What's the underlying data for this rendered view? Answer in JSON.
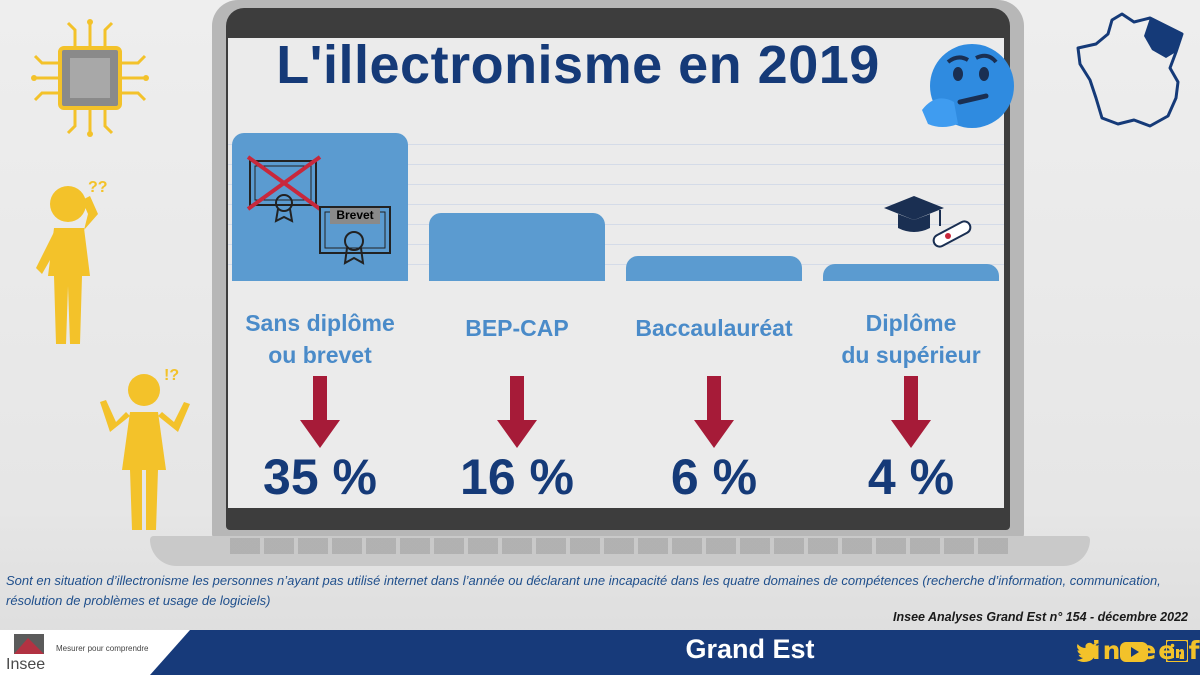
{
  "title": "L'illectronisme en 2019",
  "chart_data": {
    "type": "bar",
    "title": "L'illectronisme en 2019",
    "categories": [
      "Sans diplôme\nou brevet",
      "BEP-CAP",
      "Baccaulauréat",
      "Diplôme\ndu supérieur"
    ],
    "values": [
      35,
      16,
      6,
      4
    ],
    "value_labels": [
      "35 %",
      "16 %",
      "6 %",
      "4 %"
    ],
    "ylim": [
      0,
      35
    ],
    "grid": true,
    "colors": {
      "bar": "#5b9bd0",
      "title": "#153a78",
      "label": "#4a8bc9",
      "arrow": "#a61b38"
    }
  },
  "diploma_label": "Brevet",
  "footnote": "Sont en situation d’illectronisme les personnes n’ayant pas utilisé internet dans l’année ou déclarant une incapacité dans les quatre domaines de compétences (recherche d’information, communication, résolution de problèmes et usage de logiciels)",
  "source": "Insee Analyses Grand Est n° 154 - décembre 2022",
  "footer": {
    "region": "Grand Est",
    "site": "insee.fr",
    "logo_name": "Insee",
    "tagline": "Mesurer pour comprendre",
    "social_icons": [
      "twitter-icon",
      "youtube-icon",
      "linkedin-icon"
    ]
  }
}
